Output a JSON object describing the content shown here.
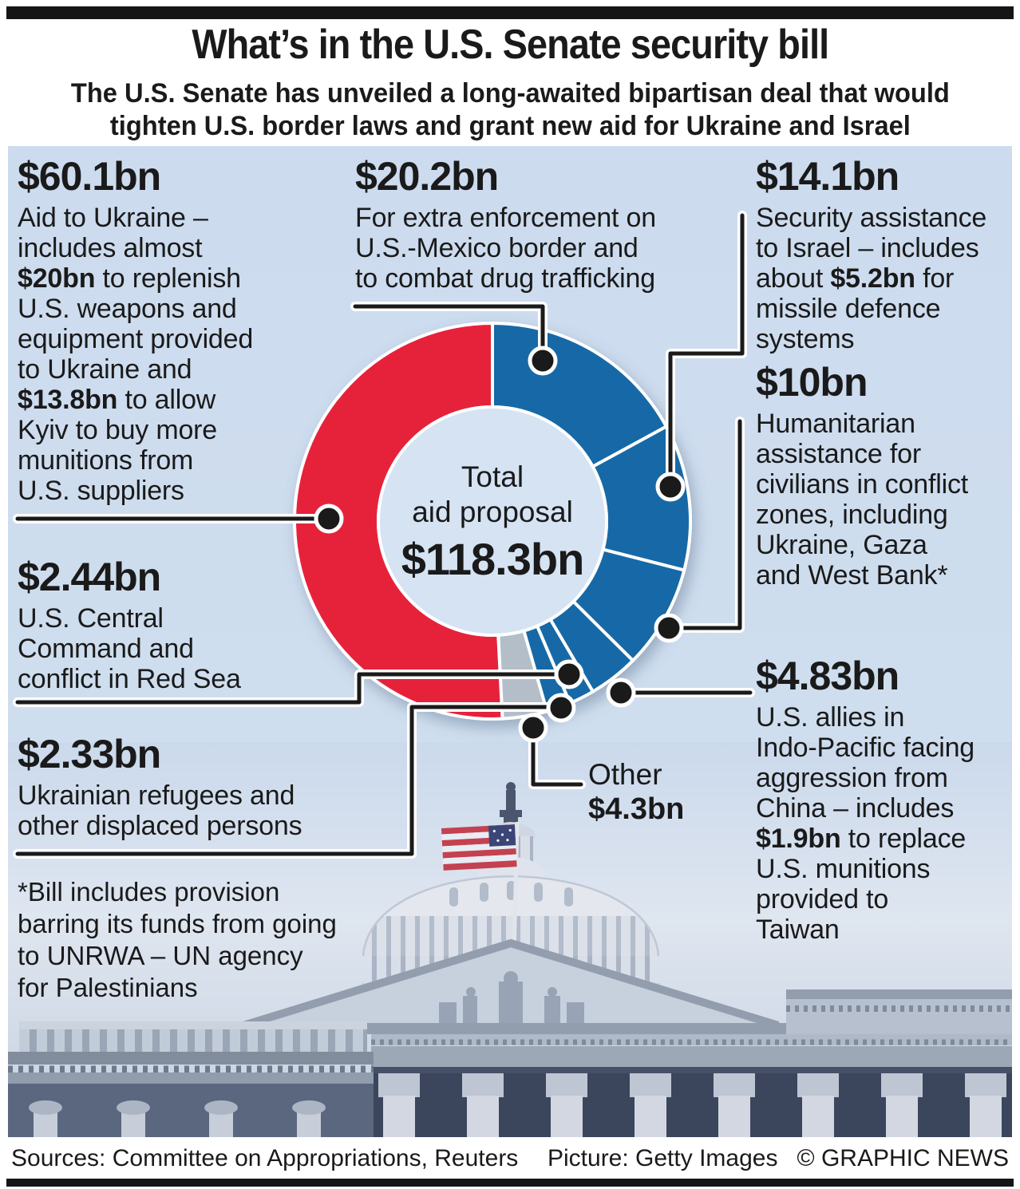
{
  "header": {
    "title": "What’s in the U.S. Senate security bill",
    "subtitle": "The U.S. Senate has unveiled a long-awaited bipartisan deal that would\ntighten U.S. border laws and grant new aid for Ukraine and Israel"
  },
  "chart_data": {
    "type": "pie",
    "variant": "donut",
    "title": "Total aid proposal",
    "center_label": {
      "lines": "Total\naid proposal",
      "total": "$118.3bn"
    },
    "total_value_bn": 118.3,
    "units": "US$ billions",
    "start_angle_deg": 0,
    "clockwise": true,
    "legend_position": "callouts",
    "segments": [
      {
        "id": "border",
        "amount": "$20.2bn",
        "value": 20.2,
        "color": "#1769a6",
        "label": "For extra enforcement on U.S.-Mexico border and to combat drug trafficking"
      },
      {
        "id": "israel",
        "amount": "$14.1bn",
        "value": 14.1,
        "color": "#1769a6",
        "label": "Security assistance to Israel – includes about $5.2bn for missile defence systems"
      },
      {
        "id": "humanitarian",
        "amount": "$10bn",
        "value": 10,
        "color": "#1769a6",
        "label": "Humanitarian assistance for civilians in conflict zones, including Ukraine, Gaza and West Bank*"
      },
      {
        "id": "indo",
        "amount": "$4.83bn",
        "value": 4.83,
        "color": "#1769a6",
        "label": "U.S. allies in Indo-Pacific facing aggression from China – includes $1.9bn to replace U.S. munitions provided to Taiwan"
      },
      {
        "id": "centcom",
        "amount": "$2.44bn",
        "value": 2.44,
        "color": "#1769a6",
        "label": "U.S. Central Command and conflict in Red Sea"
      },
      {
        "id": "refugees",
        "amount": "$2.33bn",
        "value": 2.33,
        "color": "#1769a6",
        "label": "Ukrainian refugees and other displaced persons"
      },
      {
        "id": "other",
        "amount": "$4.3bn",
        "value": 4.3,
        "color": "#b4bec9",
        "label": "Other"
      },
      {
        "id": "ukraine",
        "amount": "$60.1bn",
        "value": 60.1,
        "color": "#e6203a",
        "label": "Aid to Ukraine – includes almost $20bn to replenish U.S. weapons and equipment provided to Ukraine and $13.8bn to allow Kyiv to buy more munitions from U.S. suppliers"
      }
    ]
  },
  "callouts": {
    "ukraine": {
      "amount": "$60.1bn",
      "body": [
        {
          "t": "Aid to Ukraine –\nincludes almost\n"
        },
        {
          "t": "$20bn",
          "b": true
        },
        {
          "t": " to replenish\nU.S. weapons and\nequipment provided\nto Ukraine and\n"
        },
        {
          "t": "$13.8bn",
          "b": true
        },
        {
          "t": " to allow\nKyiv to buy more\nmunitions from\nU.S. suppliers"
        }
      ]
    },
    "centcom": {
      "amount": "$2.44bn",
      "body": [
        {
          "t": "U.S. Central\nCommand and\nconflict in Red Sea"
        }
      ]
    },
    "refugees": {
      "amount": "$2.33bn",
      "body": [
        {
          "t": "Ukrainian refugees and\nother displaced persons"
        }
      ]
    },
    "border": {
      "amount": "$20.2bn",
      "body": [
        {
          "t": "For extra enforcement on\nU.S.-Mexico border and\nto combat drug trafficking"
        }
      ]
    },
    "israel": {
      "amount": "$14.1bn",
      "body": [
        {
          "t": "Security assistance\nto Israel – includes\nabout "
        },
        {
          "t": "$5.2bn",
          "b": true
        },
        {
          "t": " for\nmissile defence\nsystems"
        }
      ]
    },
    "humanitarian": {
      "amount": "$10bn",
      "body": [
        {
          "t": "Humanitarian\nassistance for\ncivilians in conflict\nzones, including\nUkraine, Gaza\nand West Bank*"
        }
      ]
    },
    "indo": {
      "amount": "$4.83bn",
      "body": [
        {
          "t": "U.S. allies in\nIndo-Pacific facing\naggression from\nChina – includes\n"
        },
        {
          "t": "$1.9bn",
          "b": true
        },
        {
          "t": " to replace\nU.S. munitions\nprovided to\nTaiwan"
        }
      ]
    }
  },
  "other_label": {
    "name": "Other",
    "amount": "$4.3bn"
  },
  "footnote": "*Bill includes provision\nbarring its funds from going\nto UNRWA – UN agency\nfor Palestinians",
  "footer": {
    "sources": "Sources: Committee on Appropriations, Reuters",
    "picture": "Picture: Getty Images",
    "credit": "© GRAPHIC NEWS"
  },
  "colors": {
    "accent_red": "#e6203a",
    "accent_blue": "#1769a6",
    "other_gray": "#b4bec9",
    "panel_bg": "#cddcee",
    "donut_hole": "#d5e3f3",
    "text": "#1a1a1a"
  }
}
